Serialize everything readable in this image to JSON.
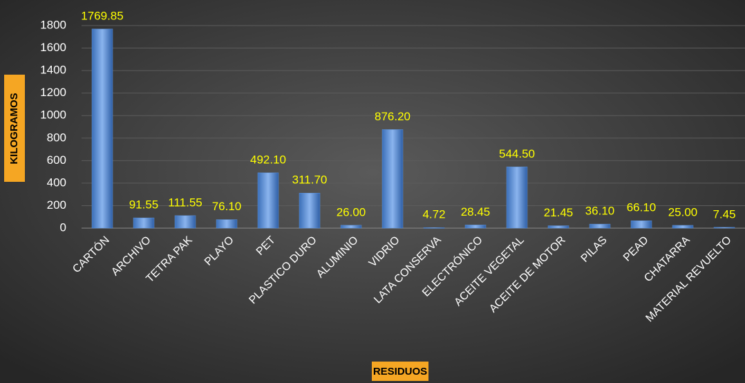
{
  "chart_data": {
    "type": "bar",
    "x_label": "RESIDUOS",
    "y_label": "KILOGRAMOS",
    "categories": [
      "CARTÓN",
      "ARCHIVO",
      "TETRA PAK",
      "PLAYO",
      "PET",
      "PLASTICO DURO",
      "ALUMINIO",
      "VIDRIO",
      "LATA CONSERVA",
      "ELECTRÓNICO",
      "ACEITE VEGETAL",
      "ACEITE DE MOTOR",
      "PILAS",
      "PEAD",
      "CHATARRA",
      "MATERIAL REVUELTO"
    ],
    "values": [
      1769.85,
      91.55,
      111.55,
      76.1,
      492.1,
      311.7,
      26,
      876.2,
      4.72,
      28.45,
      544.5,
      21.45,
      36.1,
      66.1,
      25,
      7.45
    ],
    "value_labels": [
      "1769.85",
      "91.55",
      "111.55",
      "76.10",
      "492.10",
      "311.70",
      "26.00",
      "876.20",
      "4.72",
      "28.45",
      "544.50",
      "21.45",
      "36.10",
      "66.10",
      "25.00",
      "7.45"
    ],
    "color": "#5b8fd6",
    "ylim": [
      0,
      1800
    ],
    "yticks": [
      0,
      200,
      400,
      600,
      800,
      1000,
      1200,
      1400,
      1600,
      1800
    ],
    "grid": true
  }
}
